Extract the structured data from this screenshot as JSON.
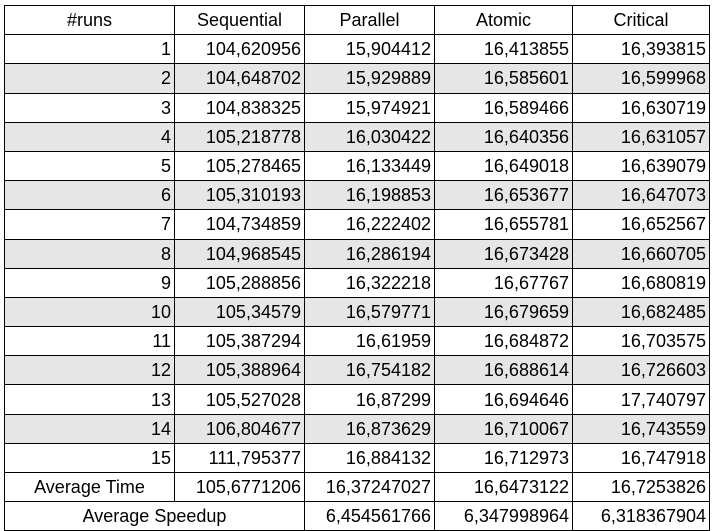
{
  "table": {
    "headers": [
      "#runs",
      "Sequential",
      "Parallel",
      "Atomic",
      "Critical"
    ],
    "rows": [
      [
        "1",
        "104,620956",
        "15,904412",
        "16,413855",
        "16,393815"
      ],
      [
        "2",
        "104,648702",
        "15,929889",
        "16,585601",
        "16,599968"
      ],
      [
        "3",
        "104,838325",
        "15,974921",
        "16,589466",
        "16,630719"
      ],
      [
        "4",
        "105,218778",
        "16,030422",
        "16,640356",
        "16,631057"
      ],
      [
        "5",
        "105,278465",
        "16,133449",
        "16,649018",
        "16,639079"
      ],
      [
        "6",
        "105,310193",
        "16,198853",
        "16,653677",
        "16,647073"
      ],
      [
        "7",
        "104,734859",
        "16,222402",
        "16,655781",
        "16,652567"
      ],
      [
        "8",
        "104,968545",
        "16,286194",
        "16,673428",
        "16,660705"
      ],
      [
        "9",
        "105,288856",
        "16,322218",
        "16,67767",
        "16,680819"
      ],
      [
        "10",
        "105,34579",
        "16,579771",
        "16,679659",
        "16,682485"
      ],
      [
        "11",
        "105,387294",
        "16,61959",
        "16,684872",
        "16,703575"
      ],
      [
        "12",
        "105,388964",
        "16,754182",
        "16,688614",
        "16,726603"
      ],
      [
        "13",
        "105,527028",
        "16,87299",
        "16,694646",
        "17,740797"
      ],
      [
        "14",
        "106,804677",
        "16,873629",
        "16,710067",
        "16,743559"
      ],
      [
        "15",
        "111,795377",
        "16,884132",
        "16,712973",
        "16,747918"
      ]
    ],
    "average_time": {
      "label": "Average Time",
      "values": [
        "105,6771206",
        "16,37247027",
        "16,6473122",
        "16,7253826"
      ]
    },
    "average_speedup": {
      "label": "Average Speedup",
      "values": [
        "6,454561766",
        "6,347998964",
        "6,318367904"
      ]
    }
  },
  "colors": {
    "shaded_row": "#e6e6e6",
    "border": "#000000"
  }
}
